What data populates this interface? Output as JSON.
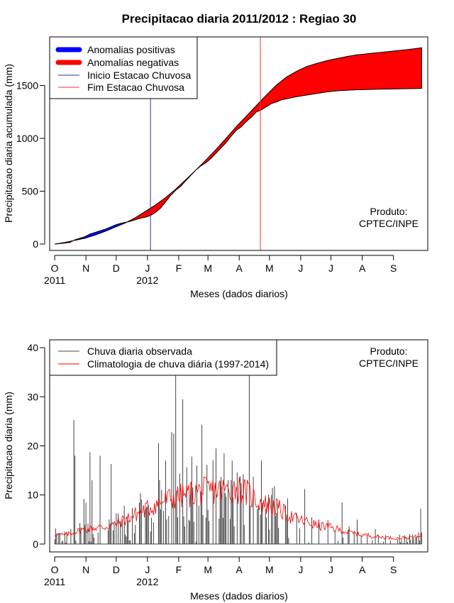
{
  "chart_data": [
    {
      "type": "area",
      "title": "Precipitacao diaria 2011/2012 : Regiao 30",
      "xlabel": "Meses (dados diarios)",
      "ylabel": "Precipitacao diaria acumulada (mm)",
      "xlim_days": [
        -5,
        370
      ],
      "ylim": [
        -60,
        1960
      ],
      "yticks": [
        0,
        500,
        1000,
        1500
      ],
      "month_ticks": [
        {
          "day": 0,
          "label": "O"
        },
        {
          "day": 31,
          "label": "N"
        },
        {
          "day": 61,
          "label": "D"
        },
        {
          "day": 92,
          "label": "J"
        },
        {
          "day": 123,
          "label": "F"
        },
        {
          "day": 152,
          "label": "M"
        },
        {
          "day": 183,
          "label": "A"
        },
        {
          "day": 213,
          "label": "M"
        },
        {
          "day": 244,
          "label": "J"
        },
        {
          "day": 274,
          "label": "J"
        },
        {
          "day": 305,
          "label": "A"
        },
        {
          "day": 336,
          "label": "S"
        }
      ],
      "year_labels": [
        {
          "day": 0,
          "label": "2011"
        },
        {
          "day": 92,
          "label": "2012"
        }
      ],
      "observed_cumulative": {
        "days": [
          0,
          10,
          15,
          20,
          25,
          30,
          35,
          40,
          45,
          50,
          55,
          60,
          65,
          70,
          75,
          80,
          85,
          90,
          95,
          100,
          105,
          110,
          115,
          120,
          125,
          130,
          135,
          140,
          145,
          150,
          155,
          160,
          165,
          170,
          175,
          180,
          185,
          190,
          195,
          200,
          205,
          210,
          215,
          220,
          225,
          230,
          235,
          240,
          250,
          260,
          270,
          280,
          290,
          300,
          310,
          320,
          330,
          340,
          350,
          360,
          364
        ],
        "values": [
          0,
          10,
          15,
          40,
          55,
          70,
          95,
          110,
          125,
          140,
          160,
          180,
          195,
          205,
          215,
          230,
          245,
          255,
          270,
          300,
          340,
          400,
          460,
          510,
          545,
          600,
          650,
          700,
          740,
          770,
          810,
          860,
          910,
          960,
          1020,
          1075,
          1110,
          1160,
          1200,
          1250,
          1270,
          1300,
          1330,
          1345,
          1365,
          1375,
          1385,
          1395,
          1410,
          1425,
          1440,
          1450,
          1455,
          1460,
          1462,
          1465,
          1467,
          1468,
          1470,
          1472,
          1473
        ]
      },
      "climatology_cumulative": {
        "days": [
          0,
          10,
          20,
          30,
          40,
          50,
          60,
          70,
          80,
          90,
          100,
          110,
          120,
          130,
          140,
          150,
          160,
          170,
          180,
          190,
          200,
          210,
          220,
          230,
          240,
          250,
          260,
          270,
          280,
          290,
          300,
          310,
          320,
          330,
          340,
          350,
          360,
          364
        ],
        "values": [
          0,
          15,
          35,
          55,
          85,
          120,
          160,
          200,
          250,
          310,
          370,
          440,
          520,
          610,
          700,
          795,
          895,
          1000,
          1110,
          1210,
          1310,
          1410,
          1505,
          1580,
          1635,
          1680,
          1710,
          1735,
          1755,
          1775,
          1790,
          1800,
          1810,
          1820,
          1830,
          1840,
          1852,
          1858
        ]
      },
      "vlines": [
        {
          "day": 95,
          "label": "Inicio Estacao Chuvosa",
          "color": "#3333aa"
        },
        {
          "day": 204,
          "label": "Fim Estacao Chuvosa",
          "color": "#ff3333"
        }
      ],
      "legend": [
        {
          "label": "Anomalias positivas",
          "color": "#0000ff",
          "kind": "thick"
        },
        {
          "label": "Anomalias negativas",
          "color": "#ff0000",
          "kind": "thick"
        },
        {
          "label": "Inicio Estacao Chuvosa",
          "color": "#3333aa",
          "kind": "thin"
        },
        {
          "label": "Fim Estacao Chuvosa",
          "color": "#ff3333",
          "kind": "thin"
        }
      ],
      "legend_position": "top-left",
      "annotation": [
        "Produto:",
        "CPTEC/INPE"
      ],
      "colors": {
        "positive": "#0000ff",
        "negative": "#ff0000"
      }
    },
    {
      "type": "bar",
      "xlabel": "Meses (dados diarios)",
      "ylabel": "Precipitacao diaria (mm)",
      "xlim_days": [
        -5,
        370
      ],
      "ylim": [
        -1.6,
        41.6
      ],
      "yticks": [
        0,
        10,
        20,
        30,
        40
      ],
      "month_ticks": [
        {
          "day": 0,
          "label": "O"
        },
        {
          "day": 31,
          "label": "N"
        },
        {
          "day": 61,
          "label": "D"
        },
        {
          "day": 92,
          "label": "J"
        },
        {
          "day": 123,
          "label": "F"
        },
        {
          "day": 152,
          "label": "M"
        },
        {
          "day": 183,
          "label": "A"
        },
        {
          "day": 213,
          "label": "M"
        },
        {
          "day": 244,
          "label": "J"
        },
        {
          "day": 274,
          "label": "J"
        },
        {
          "day": 305,
          "label": "A"
        },
        {
          "day": 336,
          "label": "S"
        }
      ],
      "year_labels": [
        {
          "day": 0,
          "label": "2011"
        },
        {
          "day": 92,
          "label": "2012"
        }
      ],
      "daily_observed_peaks": [
        {
          "day": 19,
          "value": 25.3
        },
        {
          "day": 20,
          "value": 18
        },
        {
          "day": 29,
          "value": 9.2
        },
        {
          "day": 31,
          "value": 8.4
        },
        {
          "day": 35,
          "value": 18.7
        },
        {
          "day": 37,
          "value": 13
        },
        {
          "day": 45,
          "value": 18
        },
        {
          "day": 56,
          "value": 16.3
        },
        {
          "day": 70,
          "value": 2
        },
        {
          "day": 103,
          "value": 20.5
        },
        {
          "day": 110,
          "value": 17
        },
        {
          "day": 116,
          "value": 22.8
        },
        {
          "day": 118,
          "value": 22.5
        },
        {
          "day": 120,
          "value": 35
        },
        {
          "day": 127,
          "value": 29.5
        },
        {
          "day": 136,
          "value": 17.8
        },
        {
          "day": 141,
          "value": 16
        },
        {
          "day": 146,
          "value": 24.3
        },
        {
          "day": 160,
          "value": 19.5
        },
        {
          "day": 168,
          "value": 18.5
        },
        {
          "day": 176,
          "value": 17
        },
        {
          "day": 193,
          "value": 35
        },
        {
          "day": 205,
          "value": 17
        },
        {
          "day": 215,
          "value": 10
        },
        {
          "day": 230,
          "value": 6
        },
        {
          "day": 248,
          "value": 11.2
        },
        {
          "day": 262,
          "value": 5
        },
        {
          "day": 285,
          "value": 8.5
        },
        {
          "day": 300,
          "value": 5
        },
        {
          "day": 318,
          "value": 3
        },
        {
          "day": 363,
          "value": 7.2
        }
      ],
      "climatology_daily": {
        "days": [
          0,
          10,
          20,
          30,
          40,
          50,
          60,
          70,
          80,
          90,
          100,
          110,
          120,
          130,
          140,
          150,
          160,
          170,
          180,
          190,
          200,
          210,
          220,
          230,
          240,
          250,
          260,
          270,
          280,
          290,
          300,
          310,
          320,
          330,
          340,
          350,
          360,
          364
        ],
        "values": [
          2,
          1.8,
          2.5,
          3,
          3.3,
          3.5,
          4,
          5,
          6,
          7,
          8,
          9,
          9.5,
          10,
          10.5,
          10.8,
          11,
          10.8,
          11.5,
          10.5,
          9,
          8,
          7.5,
          6,
          5,
          4.5,
          3.8,
          3.5,
          3,
          2.5,
          2,
          1.8,
          1.5,
          1.3,
          1.2,
          1.3,
          1.5,
          2
        ]
      },
      "legend": [
        {
          "label": "Chuva diaria observada",
          "color": "#444444"
        },
        {
          "label": "Climatologia de chuva diária (1997-2014)",
          "color": "#ff0000"
        }
      ],
      "legend_position": "top-left",
      "annotation": [
        "Produto:",
        "CPTEC/INPE"
      ]
    }
  ]
}
